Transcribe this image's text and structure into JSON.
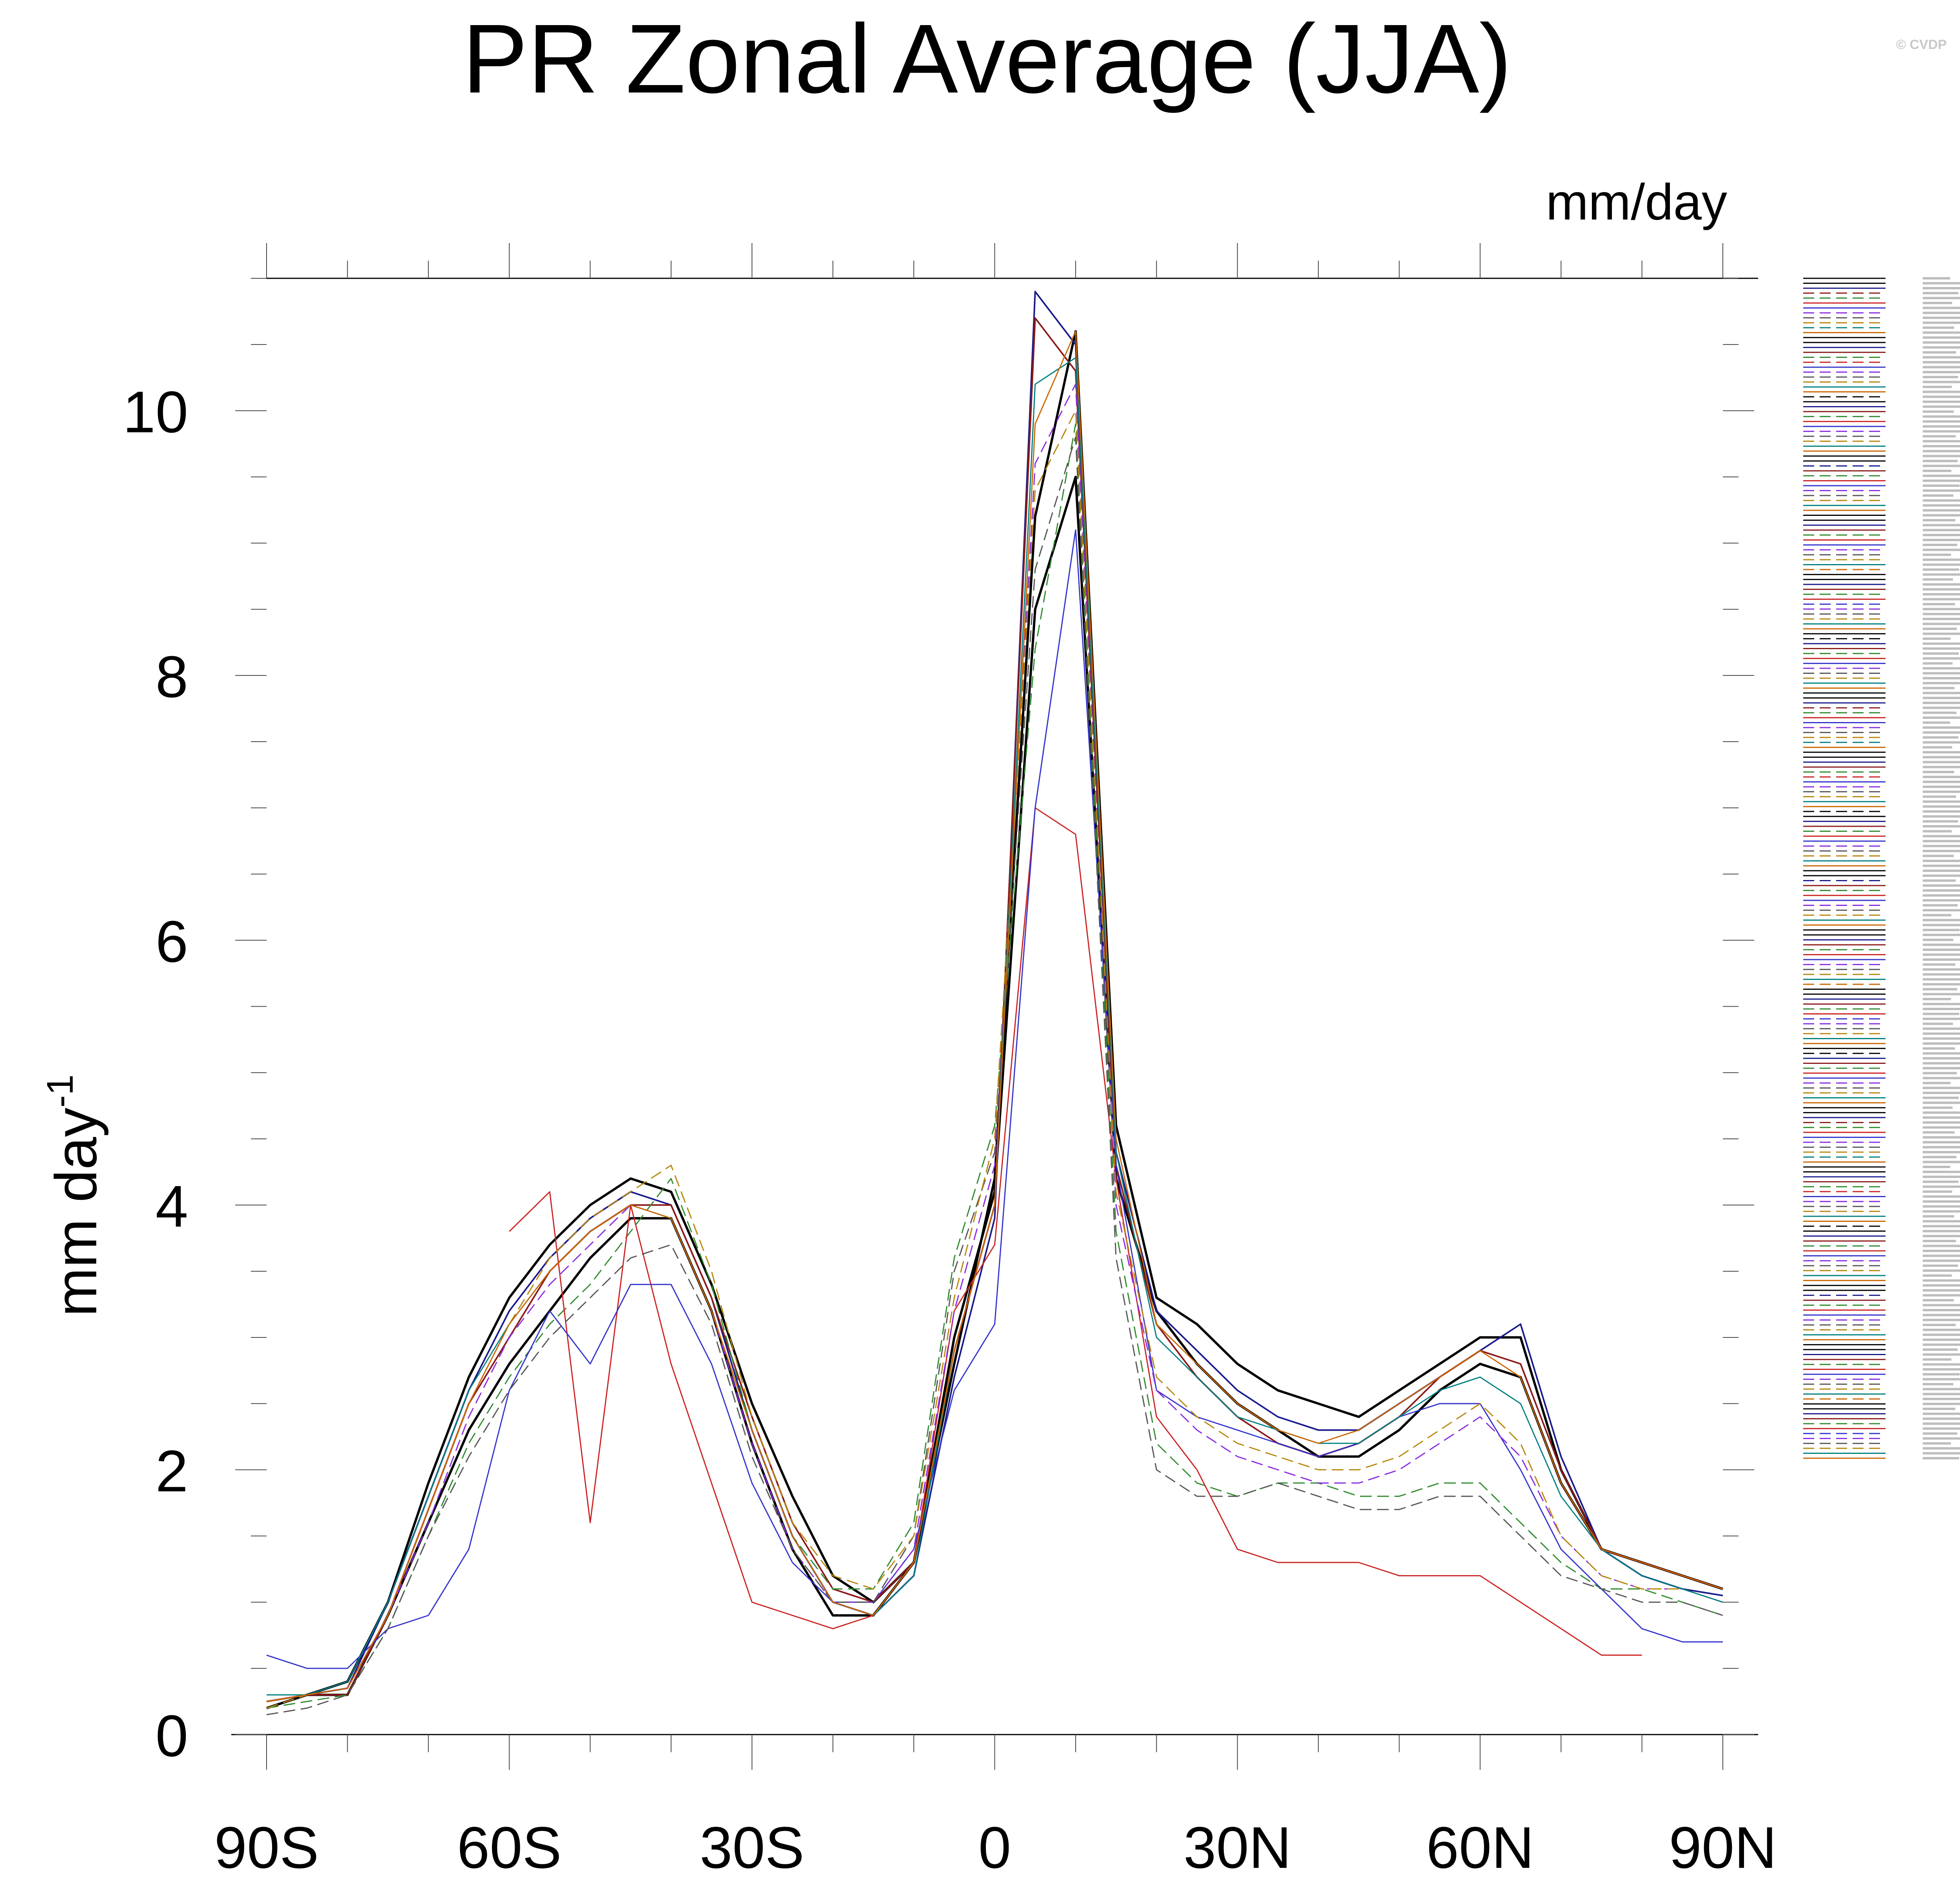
{
  "title": "PR Zonal Average (JJA)",
  "units": "mm/day",
  "watermark": "© CVDP",
  "chart_data": {
    "type": "line",
    "title": "PR Zonal Average (JJA)",
    "xlabel": "",
    "ylabel": "mm day",
    "ylabel_superscript": "-1",
    "units_label": "mm/day",
    "xlim": [
      -90,
      90
    ],
    "ylim": [
      0,
      11
    ],
    "x_ticks": [
      {
        "value": -90,
        "label": "90S"
      },
      {
        "value": -60,
        "label": "60S"
      },
      {
        "value": -30,
        "label": "30S"
      },
      {
        "value": 0,
        "label": "0"
      },
      {
        "value": 30,
        "label": "30N"
      },
      {
        "value": 60,
        "label": "60N"
      },
      {
        "value": 90,
        "label": "90N"
      }
    ],
    "y_ticks": [
      0,
      2,
      4,
      6,
      8,
      10
    ],
    "grid": false,
    "legend": "right",
    "x": [
      -90,
      -85,
      -80,
      -75,
      -70,
      -65,
      -60,
      -55,
      -50,
      -45,
      -40,
      -35,
      -30,
      -25,
      -20,
      -15,
      -10,
      -5,
      0,
      5,
      10,
      15,
      20,
      25,
      30,
      35,
      40,
      45,
      50,
      55,
      60,
      65,
      70,
      75,
      80,
      85,
      90
    ],
    "series": [
      {
        "color": "#000000",
        "dash": false,
        "width": 6,
        "values": [
          0.2,
          0.3,
          0.4,
          1.0,
          1.9,
          2.7,
          3.3,
          3.7,
          4.0,
          4.2,
          4.1,
          3.4,
          2.5,
          1.8,
          1.2,
          1.0,
          1.3,
          2.8,
          4.2,
          9.2,
          10.6,
          4.6,
          3.3,
          3.1,
          2.8,
          2.6,
          2.5,
          2.4,
          2.6,
          2.8,
          3.0,
          3.0,
          2.0,
          1.4,
          1.3,
          1.2,
          1.1
        ]
      },
      {
        "color": "#000000",
        "dash": false,
        "width": 6,
        "values": [
          0.2,
          0.3,
          0.3,
          0.9,
          1.6,
          2.3,
          2.8,
          3.2,
          3.6,
          3.9,
          3.9,
          3.2,
          2.2,
          1.4,
          0.9,
          0.9,
          1.3,
          3.0,
          4.1,
          8.5,
          9.5,
          4.2,
          3.2,
          2.8,
          2.5,
          2.3,
          2.1,
          2.1,
          2.3,
          2.6,
          2.8,
          2.7,
          1.9,
          1.4,
          1.3,
          1.2,
          1.1
        ]
      },
      {
        "color": "#1a1a8c",
        "dash": false,
        "width": 4,
        "values": [
          0.25,
          0.3,
          0.35,
          1.0,
          1.8,
          2.6,
          3.2,
          3.6,
          3.9,
          4.1,
          4.0,
          3.3,
          2.3,
          1.5,
          1.0,
          0.9,
          1.2,
          2.7,
          3.9,
          10.9,
          10.5,
          4.4,
          3.2,
          2.9,
          2.6,
          2.4,
          2.3,
          2.3,
          2.5,
          2.7,
          2.9,
          3.1,
          2.1,
          1.4,
          1.2,
          1.1,
          1.05
        ]
      },
      {
        "color": "#8b1a1a",
        "dash": false,
        "width": 4,
        "values": [
          0.25,
          0.3,
          0.3,
          0.9,
          1.7,
          2.5,
          3.0,
          3.5,
          3.8,
          4.0,
          4.0,
          3.3,
          2.4,
          1.6,
          1.1,
          1.0,
          1.3,
          2.9,
          4.0,
          10.7,
          10.3,
          4.3,
          3.1,
          2.7,
          2.4,
          2.2,
          2.1,
          2.2,
          2.4,
          2.7,
          2.9,
          2.8,
          2.0,
          1.4,
          1.3,
          1.2,
          1.1
        ]
      },
      {
        "color": "#2e8b2e",
        "dash": true,
        "width": 3,
        "values": [
          0.2,
          0.25,
          0.3,
          0.8,
          1.5,
          2.2,
          2.7,
          3.1,
          3.4,
          3.8,
          4.2,
          3.4,
          2.3,
          1.5,
          1.1,
          1.1,
          1.6,
          3.6,
          4.6,
          8.2,
          9.9,
          3.8,
          2.2,
          1.9,
          1.8,
          1.9,
          1.9,
          1.8,
          1.8,
          1.9,
          1.9,
          1.6,
          1.3,
          1.1,
          1.1,
          1.0,
          0.9
        ]
      },
      {
        "color": "#cc2222",
        "dash": false,
        "width": 3,
        "values": [
          null,
          null,
          null,
          null,
          null,
          null,
          3.8,
          4.1,
          1.6,
          4.0,
          2.8,
          1.9,
          1.0,
          0.9,
          0.8,
          0.9,
          1.3,
          3.2,
          3.7,
          7.0,
          6.8,
          4.2,
          2.4,
          2.0,
          1.4,
          1.3,
          1.3,
          1.3,
          1.2,
          1.2,
          1.2,
          1.0,
          0.8,
          0.6,
          0.6,
          null,
          null
        ]
      },
      {
        "color": "#3333cc",
        "dash": false,
        "width": 3,
        "values": [
          0.6,
          0.5,
          0.5,
          0.8,
          0.9,
          1.4,
          2.6,
          3.2,
          2.8,
          3.4,
          3.4,
          2.8,
          1.9,
          1.3,
          1.0,
          1.0,
          1.4,
          2.6,
          3.1,
          7.0,
          9.1,
          4.3,
          2.6,
          2.4,
          2.3,
          2.2,
          2.1,
          2.2,
          2.4,
          2.5,
          2.5,
          2.0,
          1.4,
          1.1,
          0.8,
          0.7,
          0.7
        ]
      },
      {
        "color": "#8a2be2",
        "dash": true,
        "width": 3,
        "values": [
          0.2,
          0.3,
          0.35,
          0.9,
          1.6,
          2.4,
          3.0,
          3.4,
          3.7,
          4.0,
          3.9,
          3.2,
          2.2,
          1.4,
          1.0,
          1.0,
          1.4,
          3.2,
          4.3,
          9.6,
          10.2,
          4.0,
          2.6,
          2.3,
          2.1,
          2.0,
          1.9,
          1.9,
          2.0,
          2.2,
          2.4,
          2.1,
          1.5,
          1.2,
          1.1,
          1.1,
          1.0
        ]
      },
      {
        "color": "#555555",
        "dash": true,
        "width": 3,
        "values": [
          0.15,
          0.2,
          0.3,
          0.8,
          1.5,
          2.1,
          2.6,
          3.0,
          3.3,
          3.6,
          3.7,
          3.1,
          2.1,
          1.4,
          1.0,
          1.0,
          1.5,
          3.5,
          4.4,
          8.8,
          9.8,
          3.6,
          2.0,
          1.8,
          1.8,
          1.9,
          1.8,
          1.7,
          1.7,
          1.8,
          1.8,
          1.5,
          1.2,
          1.1,
          1.0,
          1.0,
          0.9
        ]
      },
      {
        "color": "#b8860b",
        "dash": true,
        "width": 3,
        "values": [
          0.2,
          0.3,
          0.35,
          0.9,
          1.7,
          2.5,
          3.1,
          3.6,
          3.9,
          4.1,
          4.3,
          3.5,
          2.4,
          1.6,
          1.2,
          1.1,
          1.5,
          3.3,
          4.5,
          9.4,
          10.0,
          4.1,
          2.7,
          2.4,
          2.2,
          2.1,
          2.0,
          2.0,
          2.1,
          2.3,
          2.5,
          2.2,
          1.5,
          1.2,
          1.1,
          1.1,
          1.0
        ]
      },
      {
        "color": "#008080",
        "dash": false,
        "width": 3,
        "values": [
          0.3,
          0.3,
          0.4,
          1.0,
          1.8,
          2.6,
          3.1,
          3.5,
          3.8,
          4.0,
          3.9,
          3.2,
          2.3,
          1.5,
          1.0,
          0.9,
          1.2,
          2.9,
          4.0,
          10.2,
          10.4,
          4.4,
          3.0,
          2.7,
          2.4,
          2.3,
          2.2,
          2.2,
          2.4,
          2.6,
          2.7,
          2.5,
          1.8,
          1.4,
          1.2,
          1.1,
          1.0
        ]
      },
      {
        "color": "#cc6600",
        "dash": false,
        "width": 3,
        "values": [
          0.25,
          0.3,
          0.35,
          0.9,
          1.7,
          2.5,
          3.1,
          3.5,
          3.8,
          4.0,
          3.9,
          3.2,
          2.3,
          1.5,
          1.0,
          0.9,
          1.3,
          2.9,
          4.0,
          9.9,
          10.6,
          4.5,
          3.1,
          2.8,
          2.5,
          2.3,
          2.2,
          2.3,
          2.5,
          2.7,
          2.9,
          2.7,
          1.9,
          1.4,
          1.3,
          1.2,
          1.1
        ]
      }
    ]
  }
}
